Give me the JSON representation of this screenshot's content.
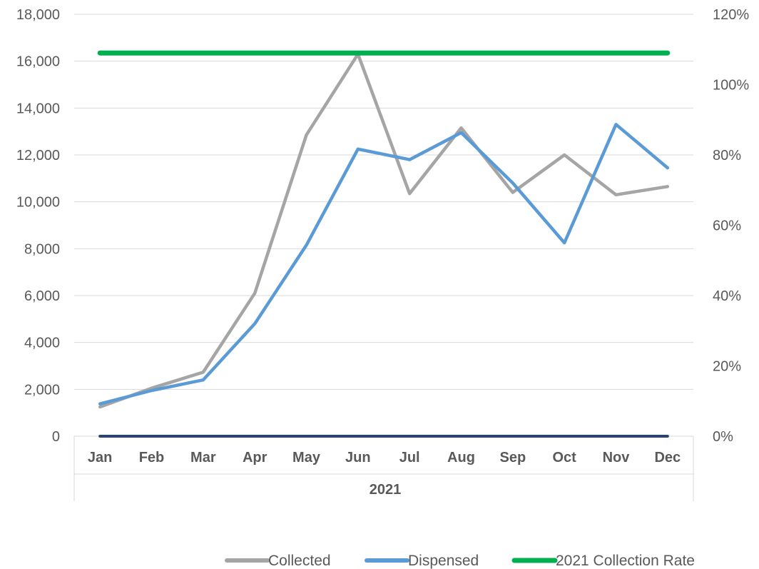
{
  "chart_data": {
    "type": "line",
    "categories": [
      "Jan",
      "Feb",
      "Mar",
      "Apr",
      "May",
      "Jun",
      "Jul",
      "Aug",
      "Sep",
      "Oct",
      "Nov",
      "Dec"
    ],
    "group_label": "2021",
    "series": [
      {
        "name": "Collected",
        "axis": "left",
        "color": "#a5a5a5",
        "values": [
          1250,
          2050,
          2730,
          6100,
          12850,
          16300,
          10350,
          13150,
          10400,
          12000,
          10300,
          10650
        ]
      },
      {
        "name": "Dispensed",
        "axis": "left",
        "color": "#5b9bd5",
        "values": [
          1380,
          1950,
          2400,
          4800,
          8150,
          12250,
          11800,
          12950,
          10800,
          8250,
          13300,
          11450
        ]
      },
      {
        "name": "2021 Collection Rate",
        "axis": "right",
        "color": "#00b050",
        "values": [
          1.09,
          1.09,
          1.09,
          1.09,
          1.09,
          1.09,
          1.09,
          1.09,
          1.09,
          1.09,
          1.09,
          1.09
        ]
      },
      {
        "name": "",
        "axis": "left",
        "color": "#264478",
        "legend": false,
        "values": [
          0,
          0,
          0,
          0,
          0,
          0,
          0,
          0,
          0,
          0,
          0,
          0
        ]
      }
    ],
    "y_left": {
      "min": 0,
      "max": 18000,
      "step": 2000,
      "ticks": [
        "0",
        "2,000",
        "4,000",
        "6,000",
        "8,000",
        "10,000",
        "12,000",
        "14,000",
        "16,000",
        "18,000"
      ]
    },
    "y_right": {
      "min": 0,
      "max": 1.2,
      "step": 0.2,
      "ticks": [
        "0%",
        "20%",
        "40%",
        "60%",
        "80%",
        "100%",
        "120%"
      ]
    },
    "grid": true,
    "legend_position": "bottom"
  }
}
